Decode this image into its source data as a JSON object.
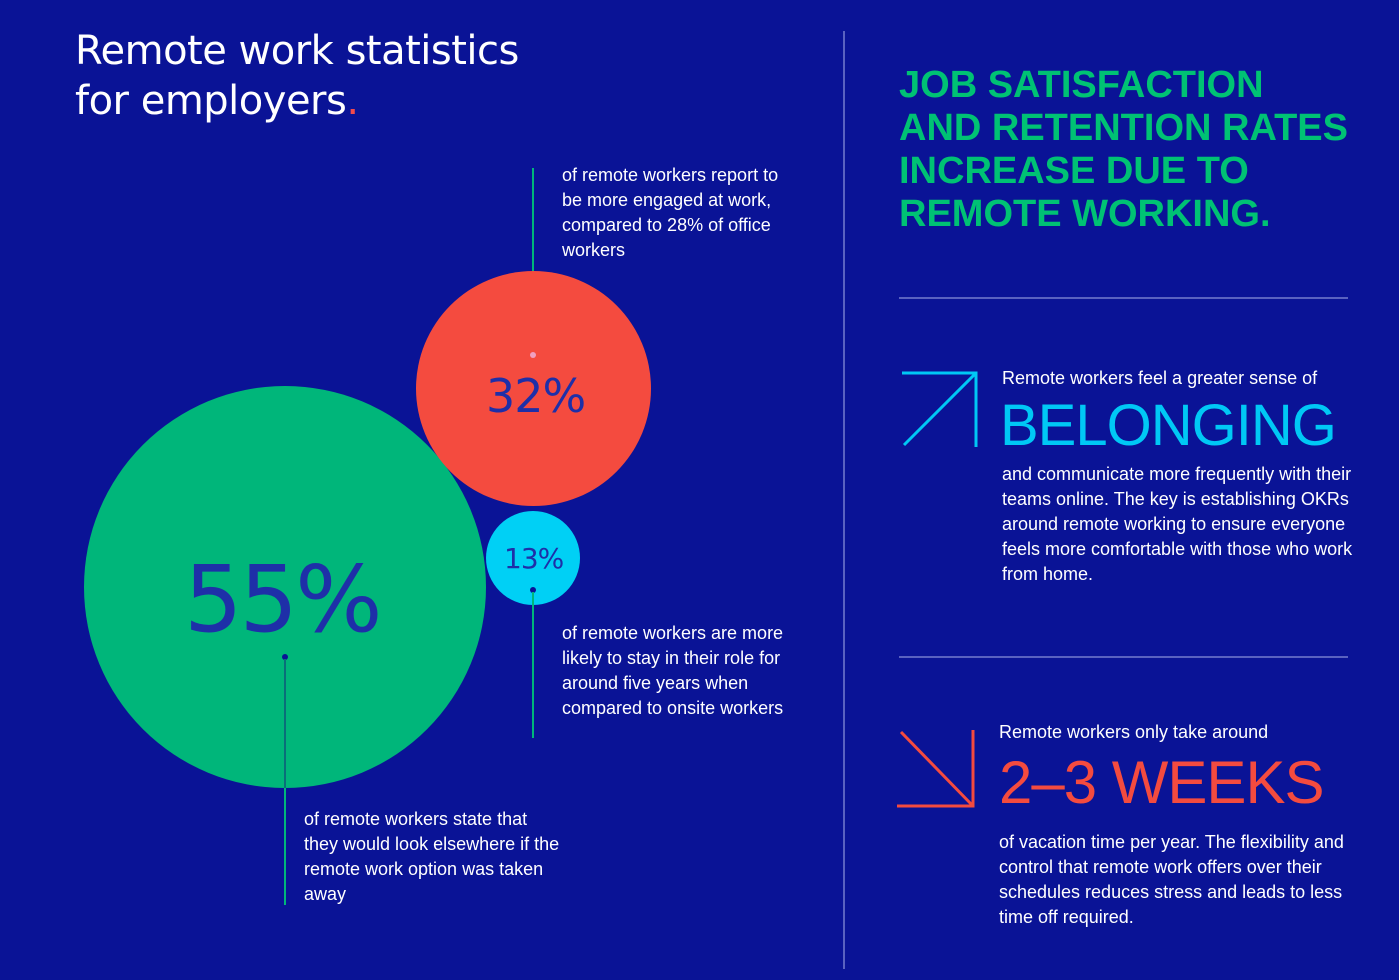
{
  "title": {
    "line1": "Remote work statistics",
    "line2": "for employers",
    "dot": "."
  },
  "stats": {
    "engaged": {
      "value": "32%",
      "description": "of remote workers report to be more engaged at work, compared to 28% of office workers",
      "color": "#f44b3f"
    },
    "stay": {
      "value": "13%",
      "description": "of remote workers are more likely to stay in their role for around five years when compared to onsite workers",
      "color": "#00d0f5"
    },
    "look_elsewhere": {
      "value": "55%",
      "description": "of remote workers state that they would look elsewhere if the remote work option was taken away",
      "color": "#00b67a"
    }
  },
  "headline": {
    "line1": "JOB SATISFACTION",
    "line2": "AND RETENTION RATES",
    "line3": "INCREASE DUE TO",
    "line4": "REMOTE WORKING."
  },
  "belonging": {
    "lead": "Remote workers feel a greater sense of",
    "big": "BELONGING",
    "text": "and communicate more frequently with their teams online. The key is establishing OKRs around remote working to ensure everyone feels more comfortable with those who work from home.",
    "icon": "arrow-up-right-icon",
    "color": "#00c8f5"
  },
  "vacation": {
    "lead": "Remote workers only take around",
    "big": "2–3 WEEKS",
    "text": "of vacation time per year. The flexibility and control that remote work offers over their schedules reduces stress and leads to less time off required.",
    "icon": "arrow-down-right-icon",
    "color": "#f44b3f"
  },
  "colors": {
    "background": "#0a1396",
    "green": "#00c274",
    "divider": "#5a62c0"
  }
}
